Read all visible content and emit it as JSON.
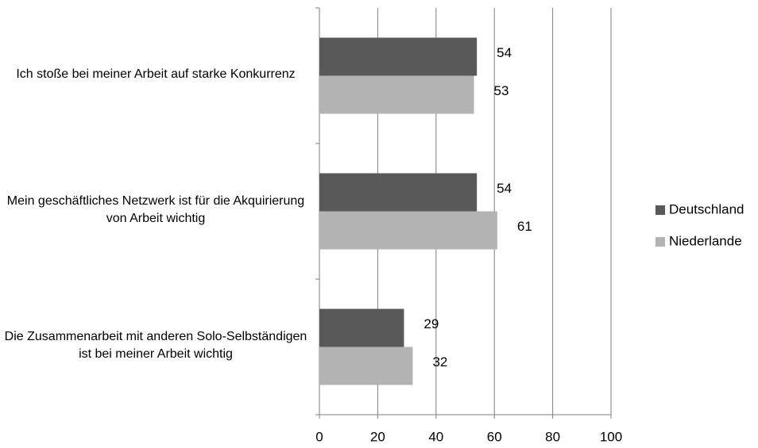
{
  "chart_data": {
    "type": "bar",
    "orientation": "horizontal",
    "categories": [
      "Ich stoße bei meiner Arbeit auf starke Konkurrenz",
      "Mein geschäftliches Netzwerk ist für die Akquirierung von Arbeit wichtig",
      "Die Zusammenarbeit mit anderen Solo-Selbständigen ist bei meiner Arbeit wichtig"
    ],
    "series": [
      {
        "name": "Deutschland",
        "color": "#595959",
        "values": [
          54,
          54,
          29
        ]
      },
      {
        "name": "Niederlande",
        "color": "#b3b3b3",
        "values": [
          53,
          61,
          32
        ]
      }
    ],
    "xlim": [
      0,
      100
    ],
    "xticks": [
      0,
      20,
      40,
      60,
      80,
      100
    ],
    "grid": true,
    "legend": "right"
  }
}
